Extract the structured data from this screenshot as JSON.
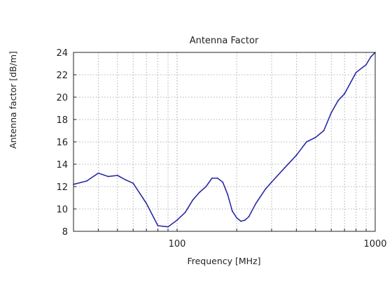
{
  "chart_data": {
    "type": "line",
    "title": "Antenna Factor",
    "xlabel": "Frequency [MHz]",
    "ylabel": "Antenna factor [dB/m]",
    "xscale": "log",
    "xlim": [
      30,
      1000
    ],
    "ylim": [
      8,
      24
    ],
    "xticks": [
      {
        "value": 100,
        "label": "100"
      },
      {
        "value": 1000,
        "label": "1000"
      }
    ],
    "yticks": [
      8,
      10,
      12,
      14,
      16,
      18,
      20,
      22,
      24
    ],
    "grid": true,
    "series": [
      {
        "x": [
          30,
          35,
          40,
          45,
          50,
          55,
          60,
          70,
          80,
          90,
          100,
          110,
          120,
          130,
          140,
          150,
          160,
          170,
          180,
          190,
          200,
          210,
          220,
          230,
          250,
          280,
          300,
          350,
          400,
          450,
          500,
          550,
          600,
          650,
          700,
          800,
          900,
          950,
          1000
        ],
        "y": [
          12.2,
          12.5,
          13.2,
          12.9,
          13.0,
          12.6,
          12.3,
          10.5,
          8.5,
          8.4,
          9.0,
          9.7,
          10.8,
          11.5,
          12.0,
          12.75,
          12.75,
          12.4,
          11.3,
          9.8,
          9.2,
          8.9,
          9.0,
          9.3,
          10.5,
          11.8,
          12.4,
          13.7,
          14.8,
          16.0,
          16.4,
          17.0,
          18.6,
          19.7,
          20.3,
          22.2,
          22.9,
          23.6,
          24.0
        ],
        "color": "#2a2aa8"
      }
    ]
  }
}
